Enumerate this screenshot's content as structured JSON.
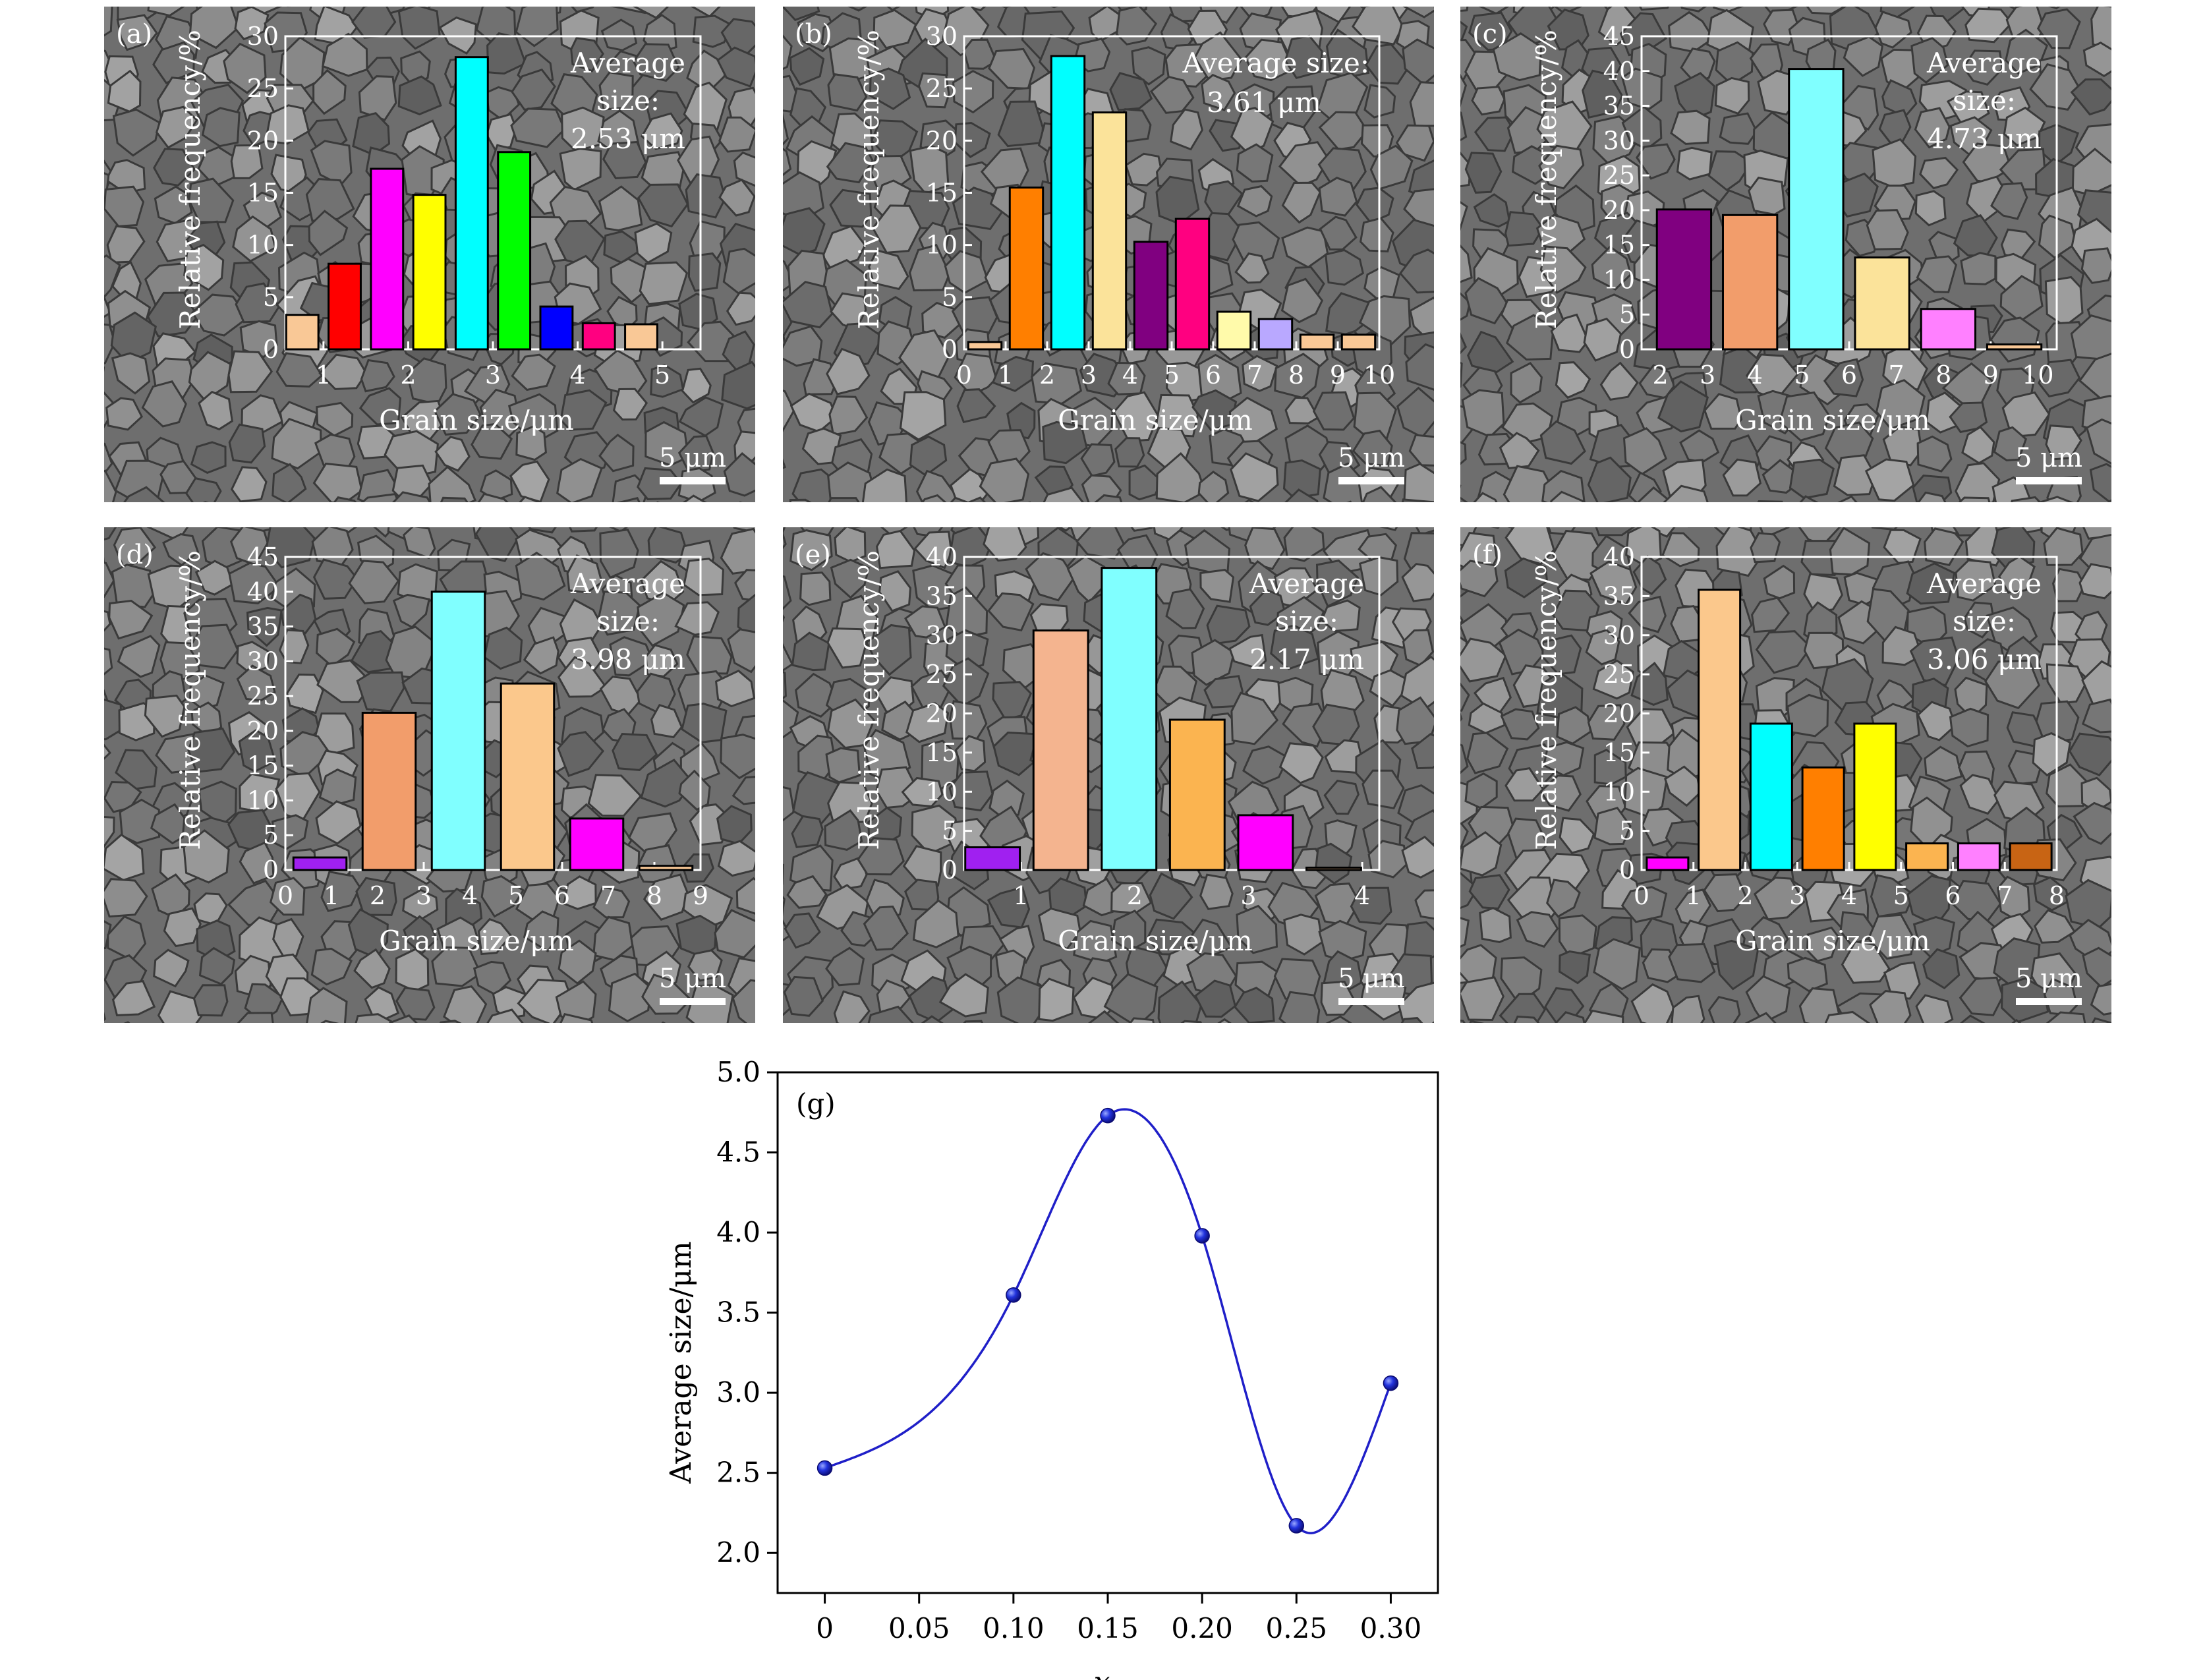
{
  "colors": {
    "sem_base": "#6e6e6e",
    "sem_light": "#9b9b9b",
    "sem_dark": "#3e3e3e",
    "overlay": "#ffffff",
    "curve": "#1f1fc8"
  },
  "common": {
    "xlabel": "Grain size/μm",
    "ylabel": "Relative frequency/%",
    "avg_word": "Average",
    "size_word": "size:",
    "scale_bar": "5 μm"
  },
  "chart_data": [
    {
      "id": "a",
      "type": "bar",
      "panel_label": "(a)",
      "avg_value": "2.53 μm",
      "xlabel": "Grain size/μm",
      "ylabel": "Relative frequency/%",
      "xlim": [
        0.55,
        5.45
      ],
      "ylim": [
        0,
        30
      ],
      "xticks": [
        "1",
        "2",
        "3",
        "4",
        "5"
      ],
      "yticks": [
        "0",
        "5",
        "10",
        "15",
        "20",
        "25",
        "30"
      ],
      "bar_width": 0.38,
      "bars": [
        {
          "x": 0.75,
          "value": 3.3,
          "color": "#f9c896"
        },
        {
          "x": 1.25,
          "value": 8.2,
          "color": "#ff0000"
        },
        {
          "x": 1.75,
          "value": 17.3,
          "color": "#ff00ff"
        },
        {
          "x": 2.25,
          "value": 14.8,
          "color": "#ffff00"
        },
        {
          "x": 2.75,
          "value": 28.0,
          "color": "#00ffff"
        },
        {
          "x": 3.25,
          "value": 18.9,
          "color": "#00ff00"
        },
        {
          "x": 3.75,
          "value": 4.1,
          "color": "#0000ff"
        },
        {
          "x": 4.25,
          "value": 2.5,
          "color": "#ff0080"
        },
        {
          "x": 4.75,
          "value": 2.4,
          "color": "#f9c896"
        }
      ]
    },
    {
      "id": "b",
      "type": "bar",
      "panel_label": "(b)",
      "avg_value": "3.61 μm",
      "xlabel": "Grain size/μm",
      "ylabel": "Relative frequency/%",
      "xlim": [
        0,
        10
      ],
      "ylim": [
        0,
        30
      ],
      "xticks": [
        "0",
        "1",
        "2",
        "3",
        "4",
        "5",
        "6",
        "7",
        "8",
        "9",
        "10"
      ],
      "yticks": [
        "0",
        "5",
        "10",
        "15",
        "20",
        "25",
        "30"
      ],
      "bar_width": 0.8,
      "bars": [
        {
          "x": 0.5,
          "value": 0.7,
          "color": "#f9c896"
        },
        {
          "x": 1.5,
          "value": 15.5,
          "color": "#ff7f00"
        },
        {
          "x": 2.5,
          "value": 28.1,
          "color": "#00ffff"
        },
        {
          "x": 3.5,
          "value": 22.7,
          "color": "#fbe39a"
        },
        {
          "x": 4.5,
          "value": 10.3,
          "color": "#800080"
        },
        {
          "x": 5.5,
          "value": 12.5,
          "color": "#ff0080"
        },
        {
          "x": 6.5,
          "value": 3.6,
          "color": "#fffaaa"
        },
        {
          "x": 7.5,
          "value": 2.9,
          "color": "#b9a8ff"
        },
        {
          "x": 8.5,
          "value": 1.4,
          "color": "#f9c896"
        },
        {
          "x": 9.5,
          "value": 1.4,
          "color": "#f9c896"
        }
      ]
    },
    {
      "id": "c",
      "type": "bar",
      "panel_label": "(c)",
      "avg_value": "4.73 μm",
      "xlabel": "Grain size/μm",
      "ylabel": "Relative frequency/%",
      "xlim": [
        1.6,
        10.4
      ],
      "ylim": [
        0,
        45
      ],
      "xticks": [
        "2",
        "3",
        "4",
        "5",
        "6",
        "7",
        "8",
        "9",
        "10"
      ],
      "yticks": [
        "0",
        "5",
        "10",
        "15",
        "20",
        "25",
        "30",
        "35",
        "40",
        "45"
      ],
      "bar_width": 1.15,
      "bars": [
        {
          "x": 2.5,
          "value": 20.1,
          "color": "#800080"
        },
        {
          "x": 3.9,
          "value": 19.3,
          "color": "#f29d6b"
        },
        {
          "x": 5.3,
          "value": 40.3,
          "color": "#80ffff"
        },
        {
          "x": 6.7,
          "value": 13.2,
          "color": "#fbe39a"
        },
        {
          "x": 8.1,
          "value": 5.8,
          "color": "#ff80ff"
        },
        {
          "x": 9.5,
          "value": 0.7,
          "color": "#f9c896"
        }
      ]
    },
    {
      "id": "d",
      "type": "bar",
      "panel_label": "(d)",
      "avg_value": "3.98 μm",
      "xlabel": "Grain size/μm",
      "ylabel": "Relative frequency/%",
      "xlim": [
        0,
        9
      ],
      "ylim": [
        0,
        45
      ],
      "xticks": [
        "0",
        "1",
        "2",
        "3",
        "4",
        "5",
        "6",
        "7",
        "8",
        "9"
      ],
      "yticks": [
        "0",
        "5",
        "10",
        "15",
        "20",
        "25",
        "30",
        "35",
        "40",
        "45"
      ],
      "bar_width": 1.15,
      "bars": [
        {
          "x": 0.75,
          "value": 1.8,
          "color": "#a020f0"
        },
        {
          "x": 2.25,
          "value": 22.6,
          "color": "#f29d6b"
        },
        {
          "x": 3.75,
          "value": 40.0,
          "color": "#80ffff"
        },
        {
          "x": 5.25,
          "value": 26.8,
          "color": "#fbc88c"
        },
        {
          "x": 6.75,
          "value": 7.4,
          "color": "#ff00ff"
        },
        {
          "x": 8.25,
          "value": 0.6,
          "color": "#f9c896"
        }
      ]
    },
    {
      "id": "e",
      "type": "bar",
      "panel_label": "(e)",
      "avg_value": "2.17 μm",
      "xlabel": "Grain size/μm",
      "ylabel": "Relative frequency/%",
      "xlim": [
        0.5,
        4.15
      ],
      "ylim": [
        0,
        40
      ],
      "xticks": [
        "1",
        "2",
        "3",
        "4"
      ],
      "yticks": [
        "0",
        "5",
        "10",
        "15",
        "20",
        "25",
        "30",
        "35",
        "40"
      ],
      "bar_width": 0.48,
      "bars": [
        {
          "x": 0.75,
          "value": 2.9,
          "color": "#a020f0"
        },
        {
          "x": 1.35,
          "value": 30.6,
          "color": "#f4b48f"
        },
        {
          "x": 1.95,
          "value": 38.6,
          "color": "#80ffff"
        },
        {
          "x": 2.55,
          "value": 19.2,
          "color": "#fbb450"
        },
        {
          "x": 3.15,
          "value": 7.0,
          "color": "#ff00ff"
        },
        {
          "x": 3.75,
          "value": 0.3,
          "color": "#f9c896"
        }
      ]
    },
    {
      "id": "f",
      "type": "bar",
      "panel_label": "(f)",
      "avg_value": "3.06 μm",
      "xlabel": "Grain size/μm",
      "ylabel": "Relative frequency/%",
      "xlim": [
        0,
        8
      ],
      "ylim": [
        0,
        40
      ],
      "xticks": [
        "0",
        "1",
        "2",
        "3",
        "4",
        "5",
        "6",
        "7",
        "8"
      ],
      "yticks": [
        "0",
        "5",
        "10",
        "15",
        "20",
        "25",
        "30",
        "35",
        "40"
      ],
      "bar_width": 0.8,
      "bars": [
        {
          "x": 0.5,
          "value": 1.6,
          "color": "#ff00ff"
        },
        {
          "x": 1.5,
          "value": 35.8,
          "color": "#fbc88c"
        },
        {
          "x": 2.5,
          "value": 18.7,
          "color": "#00ffff"
        },
        {
          "x": 3.5,
          "value": 13.1,
          "color": "#ff7f00"
        },
        {
          "x": 4.5,
          "value": 18.7,
          "color": "#ffff00"
        },
        {
          "x": 5.5,
          "value": 3.4,
          "color": "#fbb450"
        },
        {
          "x": 6.5,
          "value": 3.4,
          "color": "#ff80ff"
        },
        {
          "x": 7.5,
          "value": 3.4,
          "color": "#c86414"
        }
      ]
    },
    {
      "id": "g",
      "type": "line",
      "panel_label": "(g)",
      "xlabel": "x",
      "ylabel": "Average size/μm",
      "xlim": [
        -0.025,
        0.325
      ],
      "ylim": [
        1.75,
        5.0
      ],
      "xticks": [
        "0",
        "0.05",
        "0.10",
        "0.15",
        "0.20",
        "0.25",
        "0.30"
      ],
      "xtick_values": [
        0,
        0.05,
        0.1,
        0.15,
        0.2,
        0.25,
        0.3
      ],
      "yticks": [
        "2.0",
        "2.5",
        "3.0",
        "3.5",
        "4.0",
        "4.5",
        "5.0"
      ],
      "ytick_values": [
        2.0,
        2.5,
        3.0,
        3.5,
        4.0,
        4.5,
        5.0
      ],
      "x": [
        0,
        0.1,
        0.15,
        0.2,
        0.25,
        0.3
      ],
      "y": [
        2.53,
        3.61,
        4.73,
        3.98,
        2.17,
        3.06
      ]
    }
  ]
}
